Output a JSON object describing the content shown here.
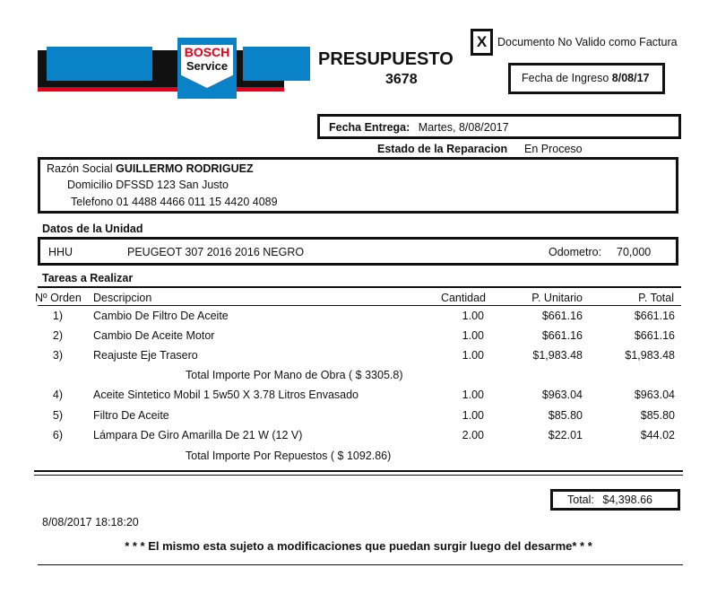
{
  "logo": {
    "brand": "BOSCH",
    "sub": "Service",
    "colors": {
      "blue": "#0a82c8",
      "red": "#e2001a",
      "black": "#111111"
    }
  },
  "header": {
    "title": "PRESUPUESTO",
    "number": "3678",
    "mark": "X",
    "disclaimer": "Documento No Valido como Factura",
    "fecha_ingreso_label": "Fecha de Ingreso",
    "fecha_ingreso": "8/08/17"
  },
  "entrega": {
    "label": "Fecha Entrega:",
    "value": "Martes,  8/08/2017"
  },
  "estado": {
    "label": "Estado de la Reparacion",
    "value": "En Proceso"
  },
  "cliente": {
    "razon_label": "Razón Social",
    "razon": "GUILLERMO RODRIGUEZ",
    "domicilio_label": "Domicilio",
    "domicilio": "DFSSD 123 San Justo",
    "telefono_label": "Telefono",
    "telefono": "01 4488 4466 011 15 4420 4089"
  },
  "unidad": {
    "title": "Datos de la Unidad",
    "patente": "HHU",
    "vehiculo": "PEUGEOT 307 2016 2016 NEGRO",
    "odometro_label": "Odometro:",
    "odometro": "70,000"
  },
  "tareas": {
    "title": "Tareas a Realizar",
    "columns": [
      "Nº Orden",
      "Descripcion",
      "Cantidad",
      "P. Unitario",
      "P. Total"
    ],
    "rows": [
      {
        "n": "1)",
        "desc": "Cambio De Filtro De Aceite",
        "qty": "1.00",
        "unit": "$661.16",
        "total": "$661.16"
      },
      {
        "n": "2)",
        "desc": "Cambio De Aceite Motor",
        "qty": "1.00",
        "unit": "$661.16",
        "total": "$661.16"
      },
      {
        "n": "3)",
        "desc": "Reajuste Eje Trasero",
        "qty": "1.00",
        "unit": "$1,983.48",
        "total": "$1,983.48"
      },
      {
        "n": "4)",
        "desc": "Aceite Sintetico Mobil 1 5w50 X 3.78 Litros Envasado",
        "qty": "1.00",
        "unit": "$963.04",
        "total": "$963.04"
      },
      {
        "n": "5)",
        "desc": "Filtro De Aceite",
        "qty": "1.00",
        "unit": "$85.80",
        "total": "$85.80"
      },
      {
        "n": "6)",
        "desc": "Lámpara De Giro Amarilla De 21 W (12 V)",
        "qty": "2.00",
        "unit": "$22.01",
        "total": "$44.02"
      }
    ],
    "subtotal_mano": "Total Importe Por Mano de Obra ( $ 3305.8)",
    "subtotal_repuestos": "Total Importe Por Repuestos ( $ 1092.86)"
  },
  "total": {
    "label": "Total:",
    "value": "$4,398.66"
  },
  "footer": {
    "datetime": "8/08/2017  18:18:20",
    "note": "* * * El mismo esta sujeto a modificaciones que puedan surgir luego del desarme* * *"
  }
}
